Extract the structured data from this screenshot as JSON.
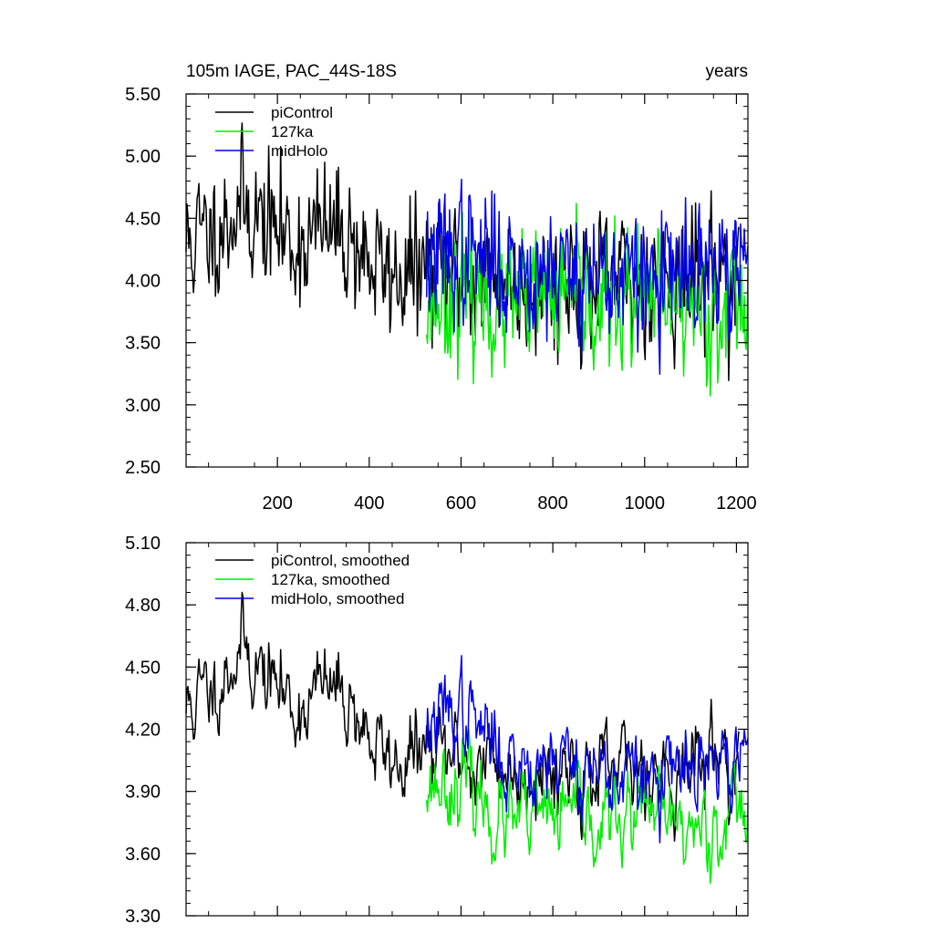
{
  "figure": {
    "title_left": "105m IAGE, PAC_44S-18S",
    "title_right": "years"
  },
  "colors": {
    "picontrol": "#000000",
    "ka127": "#00ee00",
    "midholo": "#0000ee"
  },
  "chart_data": [
    {
      "type": "line",
      "title": "105m IAGE, PAC_44S-18S",
      "units": "years",
      "xlim": [
        1,
        1225
      ],
      "ylim": [
        2.5,
        5.5
      ],
      "xticks": [
        200,
        400,
        600,
        800,
        1000,
        1200
      ],
      "xtick_labels": [
        "200",
        "400",
        "600",
        "800",
        "1000",
        "1200"
      ],
      "yticks": [
        2.5,
        3.0,
        3.5,
        4.0,
        4.5,
        5.0,
        5.5
      ],
      "ytick_labels": [
        "2.50",
        "3.00",
        "3.50",
        "4.00",
        "4.50",
        "5.00",
        "5.50"
      ],
      "legend_position": "top-left",
      "series": [
        {
          "name": "piControl",
          "color_key": "picontrol",
          "x_start": 1,
          "x_end": 1205,
          "anchors_x": [
            1,
            60,
            120,
            180,
            240,
            300,
            360,
            400,
            440,
            480,
            520,
            560,
            600,
            640,
            680,
            720,
            760,
            800,
            840,
            880,
            920,
            960,
            1000,
            1040,
            1080,
            1120,
            1160,
            1205
          ],
          "anchors_y": [
            4.3,
            4.4,
            4.6,
            4.45,
            4.3,
            4.4,
            4.35,
            4.15,
            4.05,
            4.05,
            4.1,
            4.05,
            4.1,
            4.0,
            4.05,
            3.95,
            4.05,
            4.0,
            4.05,
            3.95,
            3.95,
            4.0,
            4.05,
            4.0,
            4.0,
            4.05,
            4.1,
            4.0
          ],
          "noise": 0.27,
          "rho": 0.3,
          "seed": 11
        },
        {
          "name": "127ka",
          "color_key": "ka127",
          "x_start": 525,
          "x_end": 1225,
          "anchors_x": [
            525,
            600,
            700,
            800,
            900,
            1000,
            1100,
            1225
          ],
          "anchors_y": [
            3.85,
            3.9,
            3.78,
            3.85,
            3.8,
            3.82,
            3.8,
            3.82
          ],
          "noise": 0.27,
          "rho": 0.3,
          "seed": 23
        },
        {
          "name": "midHolo",
          "color_key": "midholo",
          "x_start": 525,
          "x_end": 1225,
          "anchors_x": [
            525,
            600,
            700,
            800,
            900,
            1000,
            1100,
            1225
          ],
          "anchors_y": [
            4.15,
            4.25,
            4.1,
            4.12,
            4.05,
            4.0,
            4.02,
            4.08
          ],
          "noise": 0.27,
          "rho": 0.3,
          "seed": 37
        }
      ]
    },
    {
      "type": "line",
      "title": "",
      "units": "years",
      "xlim": [
        1,
        1225
      ],
      "ylim": [
        3.3,
        5.1
      ],
      "xticks": [
        200,
        400,
        600,
        800,
        1000,
        1200
      ],
      "xtick_labels": [],
      "yticks": [
        3.3,
        3.6,
        3.9,
        4.2,
        4.5,
        4.8,
        5.1
      ],
      "ytick_labels": [
        "3.30",
        "3.60",
        "3.90",
        "4.20",
        "4.50",
        "4.80",
        "5.10"
      ],
      "legend_position": "top-left",
      "series": [
        {
          "name": "piControl, smoothed",
          "color_key": "picontrol",
          "x_start": 1,
          "x_end": 1205,
          "anchors_x": [
            1,
            60,
            120,
            180,
            240,
            300,
            360,
            400,
            440,
            480,
            520,
            560,
            600,
            640,
            680,
            720,
            760,
            800,
            840,
            880,
            920,
            960,
            1000,
            1040,
            1080,
            1120,
            1160,
            1205
          ],
          "anchors_y": [
            4.3,
            4.4,
            4.6,
            4.45,
            4.3,
            4.4,
            4.35,
            4.15,
            4.05,
            4.05,
            4.1,
            4.05,
            4.1,
            4.0,
            4.05,
            3.95,
            4.05,
            4.0,
            4.05,
            3.95,
            3.95,
            4.0,
            4.05,
            4.0,
            4.0,
            4.05,
            4.1,
            4.0
          ],
          "noise": 0.11,
          "rho": 0.65,
          "seed": 11
        },
        {
          "name": "127ka, smoothed",
          "color_key": "ka127",
          "x_start": 525,
          "x_end": 1225,
          "anchors_x": [
            525,
            600,
            700,
            800,
            900,
            1000,
            1100,
            1225
          ],
          "anchors_y": [
            3.95,
            3.95,
            3.72,
            3.78,
            3.75,
            3.78,
            3.72,
            3.82
          ],
          "noise": 0.11,
          "rho": 0.65,
          "seed": 23
        },
        {
          "name": "midHolo, smoothed",
          "color_key": "midholo",
          "x_start": 525,
          "x_end": 1225,
          "anchors_x": [
            525,
            600,
            700,
            800,
            900,
            1000,
            1100,
            1225
          ],
          "anchors_y": [
            4.2,
            4.3,
            4.05,
            4.08,
            4.0,
            3.95,
            3.98,
            4.05
          ],
          "noise": 0.11,
          "rho": 0.65,
          "seed": 37
        }
      ]
    }
  ]
}
